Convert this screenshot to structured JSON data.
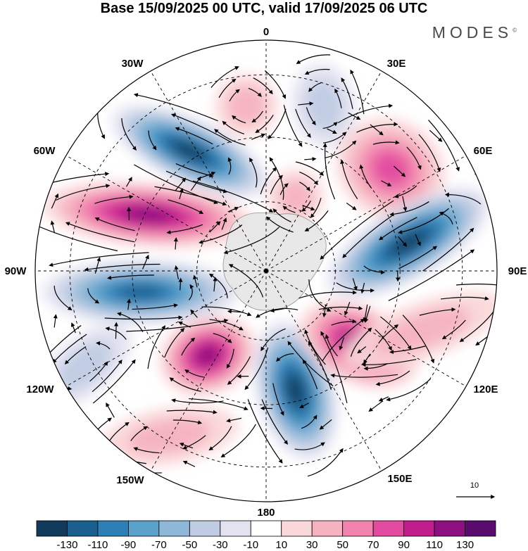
{
  "title": "Base 15/09/2025 00 UTC, valid 17/09/2025 06 UTC",
  "brand": {
    "name": "MODES",
    "mark": "©"
  },
  "map": {
    "projection": "south-polar-stereographic",
    "longitude_labels": [
      "0",
      "30E",
      "60E",
      "90E",
      "120E",
      "150E",
      "180",
      "150W",
      "120W",
      "90W",
      "60W",
      "30W"
    ],
    "vector_scale_label": "10"
  },
  "anomaly_centers": [
    {
      "sign": "positive",
      "level": 70,
      "region": "near 25E, mid-latitudes"
    },
    {
      "sign": "negative",
      "level": -30,
      "region": "near 5E, mid-latitudes"
    },
    {
      "sign": "negative",
      "level": -130,
      "region": "near 45W"
    },
    {
      "sign": "positive",
      "level": 110,
      "region": "near 70W"
    },
    {
      "sign": "negative",
      "level": -110,
      "region": "near 100W"
    },
    {
      "sign": "positive",
      "level": 110,
      "region": "near 135W"
    },
    {
      "sign": "negative",
      "level": -130,
      "region": "near 170E"
    },
    {
      "sign": "positive",
      "level": 110,
      "region": "near 125E"
    },
    {
      "sign": "negative",
      "level": -130,
      "region": "near 85E"
    }
  ],
  "colorbar": {
    "colors": [
      "#123a5b",
      "#1b5f8f",
      "#2d80b6",
      "#5aa1cb",
      "#8fb8d8",
      "#c0cce3",
      "#e2e2f0",
      "#ffffff",
      "#fad7d8",
      "#f6b2c0",
      "#f183ae",
      "#e24b9f",
      "#c11c8c",
      "#8c1080",
      "#5a0b6e"
    ],
    "labels": [
      "-130",
      "-110",
      "-90",
      "-70",
      "-50",
      "-30",
      "-10",
      "10",
      "30",
      "50",
      "70",
      "90",
      "110",
      "130"
    ]
  }
}
